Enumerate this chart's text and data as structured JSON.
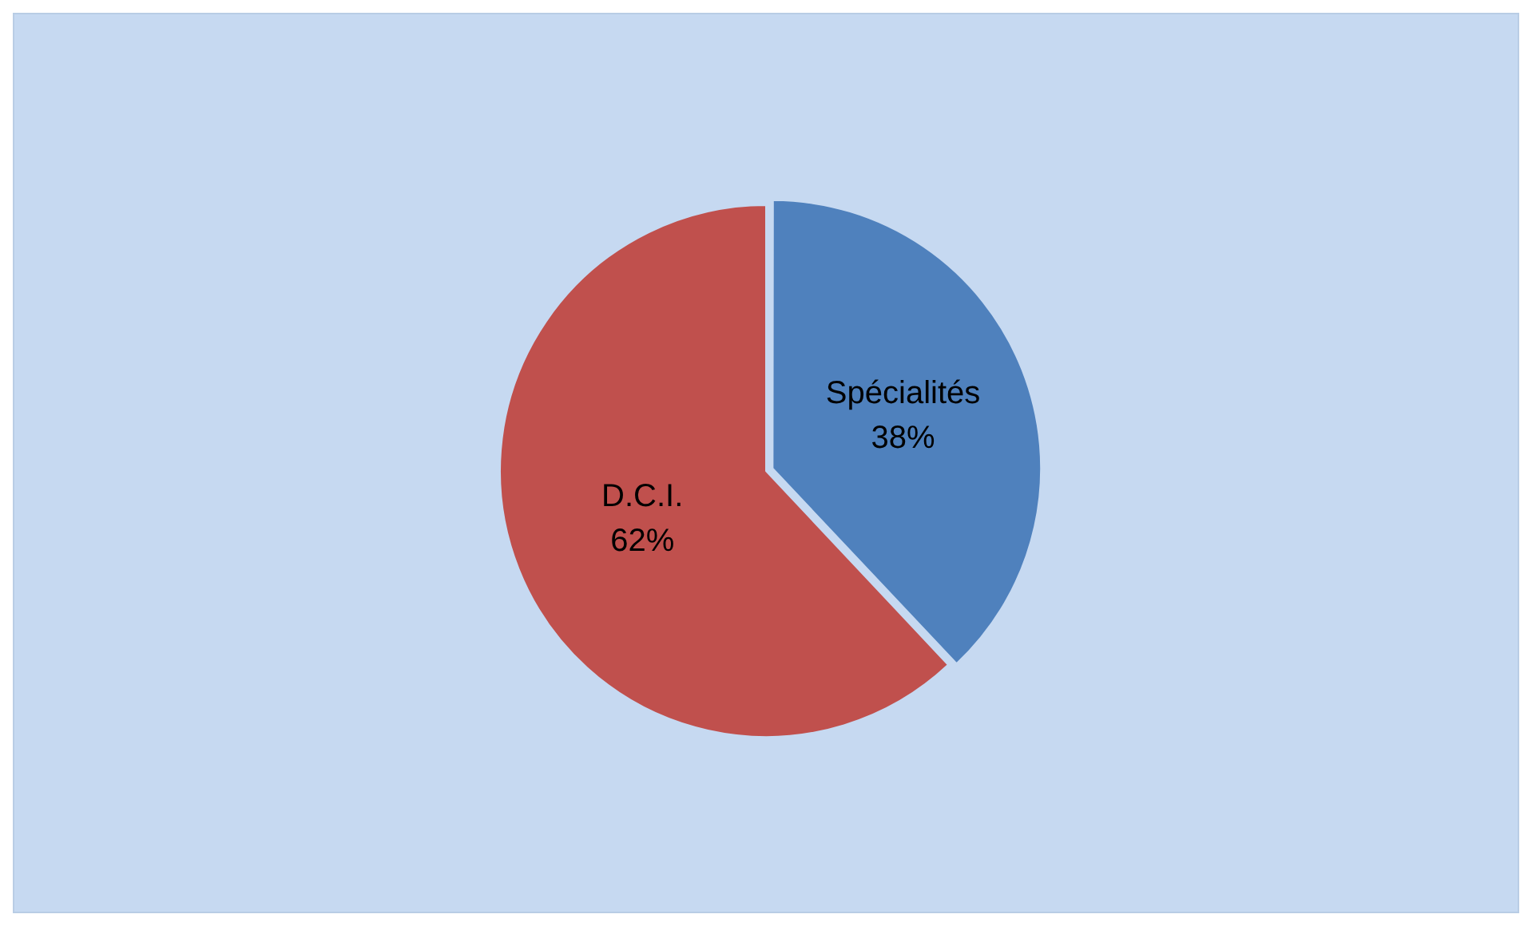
{
  "chart_data": {
    "type": "pie",
    "categories": [
      "Spécialités",
      "D.C.I."
    ],
    "values": [
      38,
      62
    ],
    "colors": [
      "#4f81bd",
      "#c0504d"
    ],
    "value_labels": [
      "38%",
      "62%"
    ]
  }
}
